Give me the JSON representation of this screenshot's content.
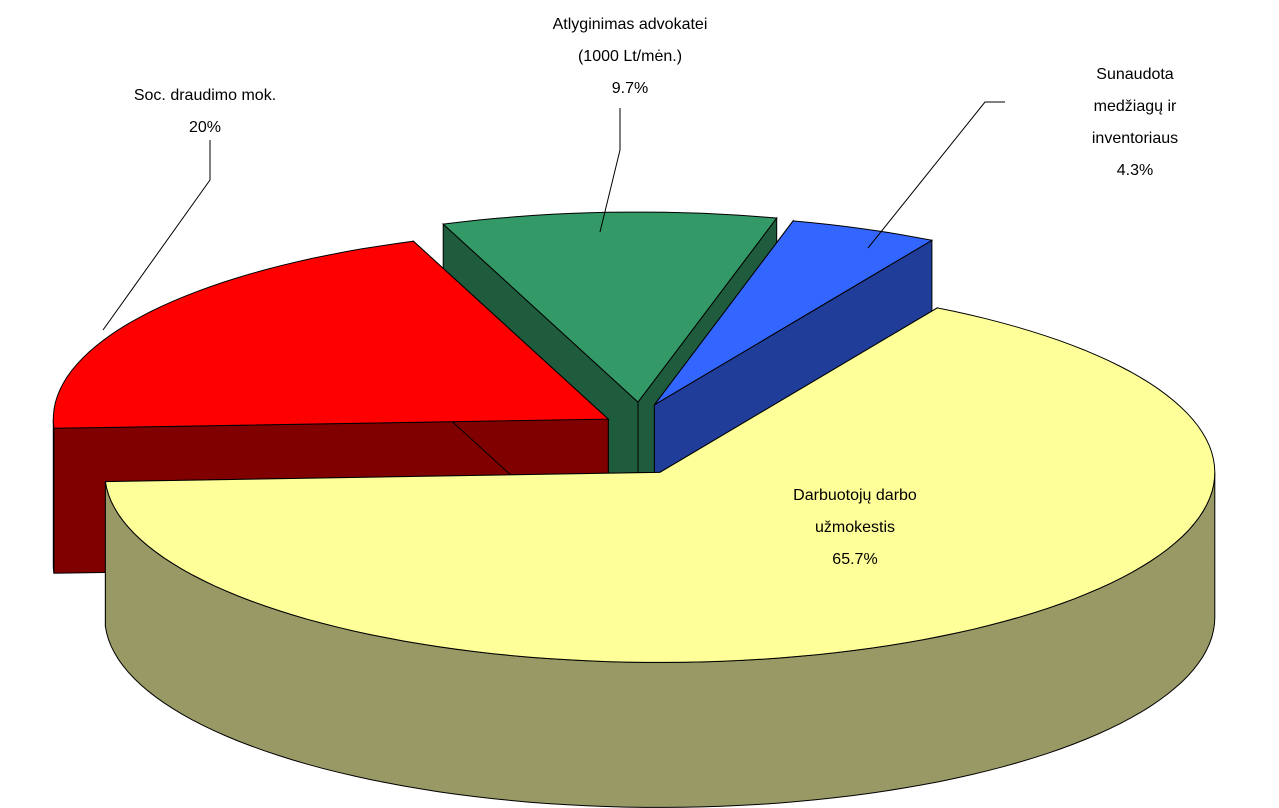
{
  "chart_data": {
    "type": "pie",
    "categories": [
      "Darbuotojų darbo\nužmokestis",
      "Soc. draudimo mok.",
      "Atlyginimas advokatei\n(1000 Lt/mėn.)",
      "Sunaudota medžiagų ir\ninventoriaus"
    ],
    "values": [
      65.7,
      20,
      9.7,
      4.3
    ],
    "value_labels": [
      "65.7%",
      "20%",
      "9.7%",
      "4.3%"
    ],
    "colors": [
      "#ffff99",
      "#ff0000",
      "#339966",
      "#3366ff"
    ]
  }
}
